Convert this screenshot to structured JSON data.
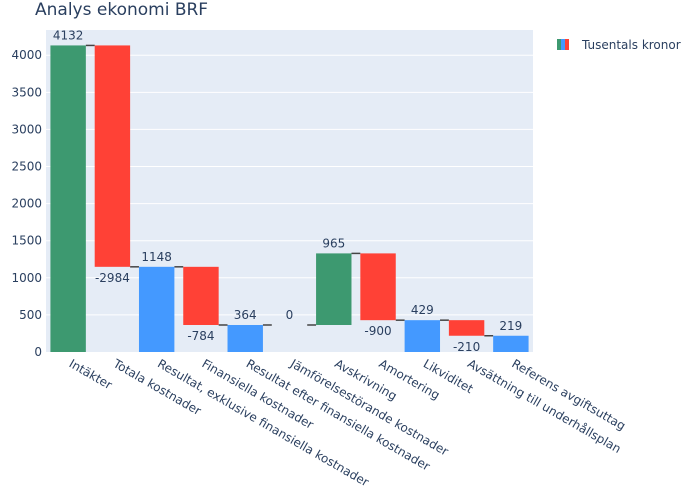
{
  "chart_data": {
    "type": "waterfall",
    "title": "Analys ekonomi BRF",
    "legend": {
      "label": "Tusentals kronor",
      "position": "top-right"
    },
    "categories": [
      "Intäkter",
      "Totala kostnader",
      "Resultat, exklusive finansiella kostnader",
      "Finansiella kostnader",
      "Resultat efter finansiella kostnader",
      "Jämförelsestörande kostnader",
      "Avskrivning",
      "Amortering",
      "Likviditet",
      "Avsättning till underhållsplan",
      "Referens avgiftsuttag"
    ],
    "measures": [
      "relative",
      "relative",
      "total",
      "relative",
      "total",
      "relative",
      "relative",
      "relative",
      "total",
      "relative",
      "total"
    ],
    "values": [
      4132,
      -2984,
      1148,
      -784,
      364,
      0,
      965,
      -900,
      429,
      -210,
      219
    ],
    "text": [
      "4132",
      "-2984",
      "1148",
      "-784",
      "364",
      "0",
      "965",
      "-900",
      "429",
      "-210",
      "219"
    ],
    "ylim": [
      0,
      4340
    ],
    "yticks": [
      0,
      500,
      1000,
      1500,
      2000,
      2500,
      3000,
      3500,
      4000
    ],
    "grid": true,
    "colors": {
      "increasing": "#3d9970",
      "decreasing": "#ff4136",
      "total": "#4499ff",
      "plot_bg": "#e5ecf6",
      "connector": "#444444"
    }
  }
}
